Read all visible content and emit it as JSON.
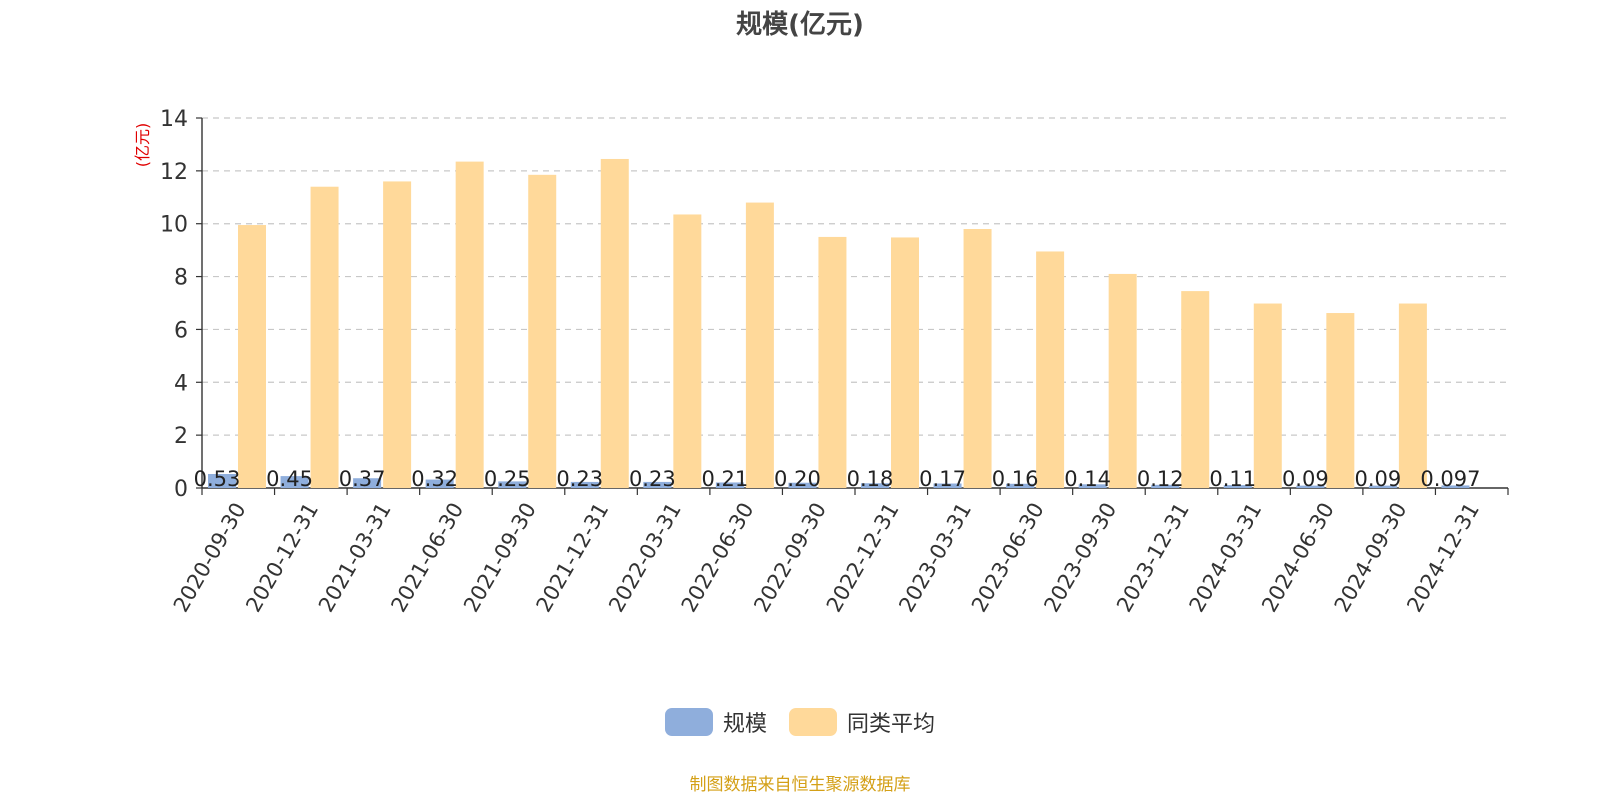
{
  "colors": {
    "series1": "#8FAEDC",
    "series2": "#FFD99A",
    "unit_label": "#e00000",
    "source": "#d4a017",
    "grid": "#c8c8c8",
    "axis": "#333333"
  },
  "source_note": "制图数据来自恒生聚源数据库",
  "chart_data": {
    "type": "bar",
    "title": "规模(亿元)",
    "ylabel": "(亿元)",
    "xlabel": "",
    "ylim": [
      0,
      14
    ],
    "yticks": [
      0,
      2,
      4,
      6,
      8,
      10,
      12,
      14
    ],
    "grid": true,
    "legend_position": "bottom",
    "categories": [
      "2020-09-30",
      "2020-12-31",
      "2021-03-31",
      "2021-06-30",
      "2021-09-30",
      "2021-12-31",
      "2022-03-31",
      "2022-06-30",
      "2022-09-30",
      "2022-12-31",
      "2023-03-31",
      "2023-06-30",
      "2023-09-30",
      "2023-12-31",
      "2024-03-31",
      "2024-06-30",
      "2024-09-30",
      "2024-12-31"
    ],
    "series": [
      {
        "name": "规模",
        "values": [
          0.53,
          0.45,
          0.37,
          0.32,
          0.25,
          0.23,
          0.23,
          0.21,
          0.2,
          0.18,
          0.17,
          0.16,
          0.14,
          0.12,
          0.11,
          0.09,
          0.09,
          0.097
        ],
        "labels": [
          "0.53",
          "0.45",
          "0.37",
          "0.32",
          "0.25",
          "0.23",
          "0.23",
          "0.21",
          "0.20",
          "0.18",
          "0.17",
          "0.16",
          "0.14",
          "0.12",
          "0.11",
          "0.09",
          "0.09",
          "0.097"
        ]
      },
      {
        "name": "同类平均",
        "values": [
          9.95,
          11.4,
          11.6,
          12.35,
          11.85,
          12.45,
          10.35,
          10.8,
          9.5,
          9.48,
          9.8,
          8.95,
          8.1,
          7.45,
          6.98,
          6.62,
          6.98,
          null
        ]
      }
    ]
  }
}
